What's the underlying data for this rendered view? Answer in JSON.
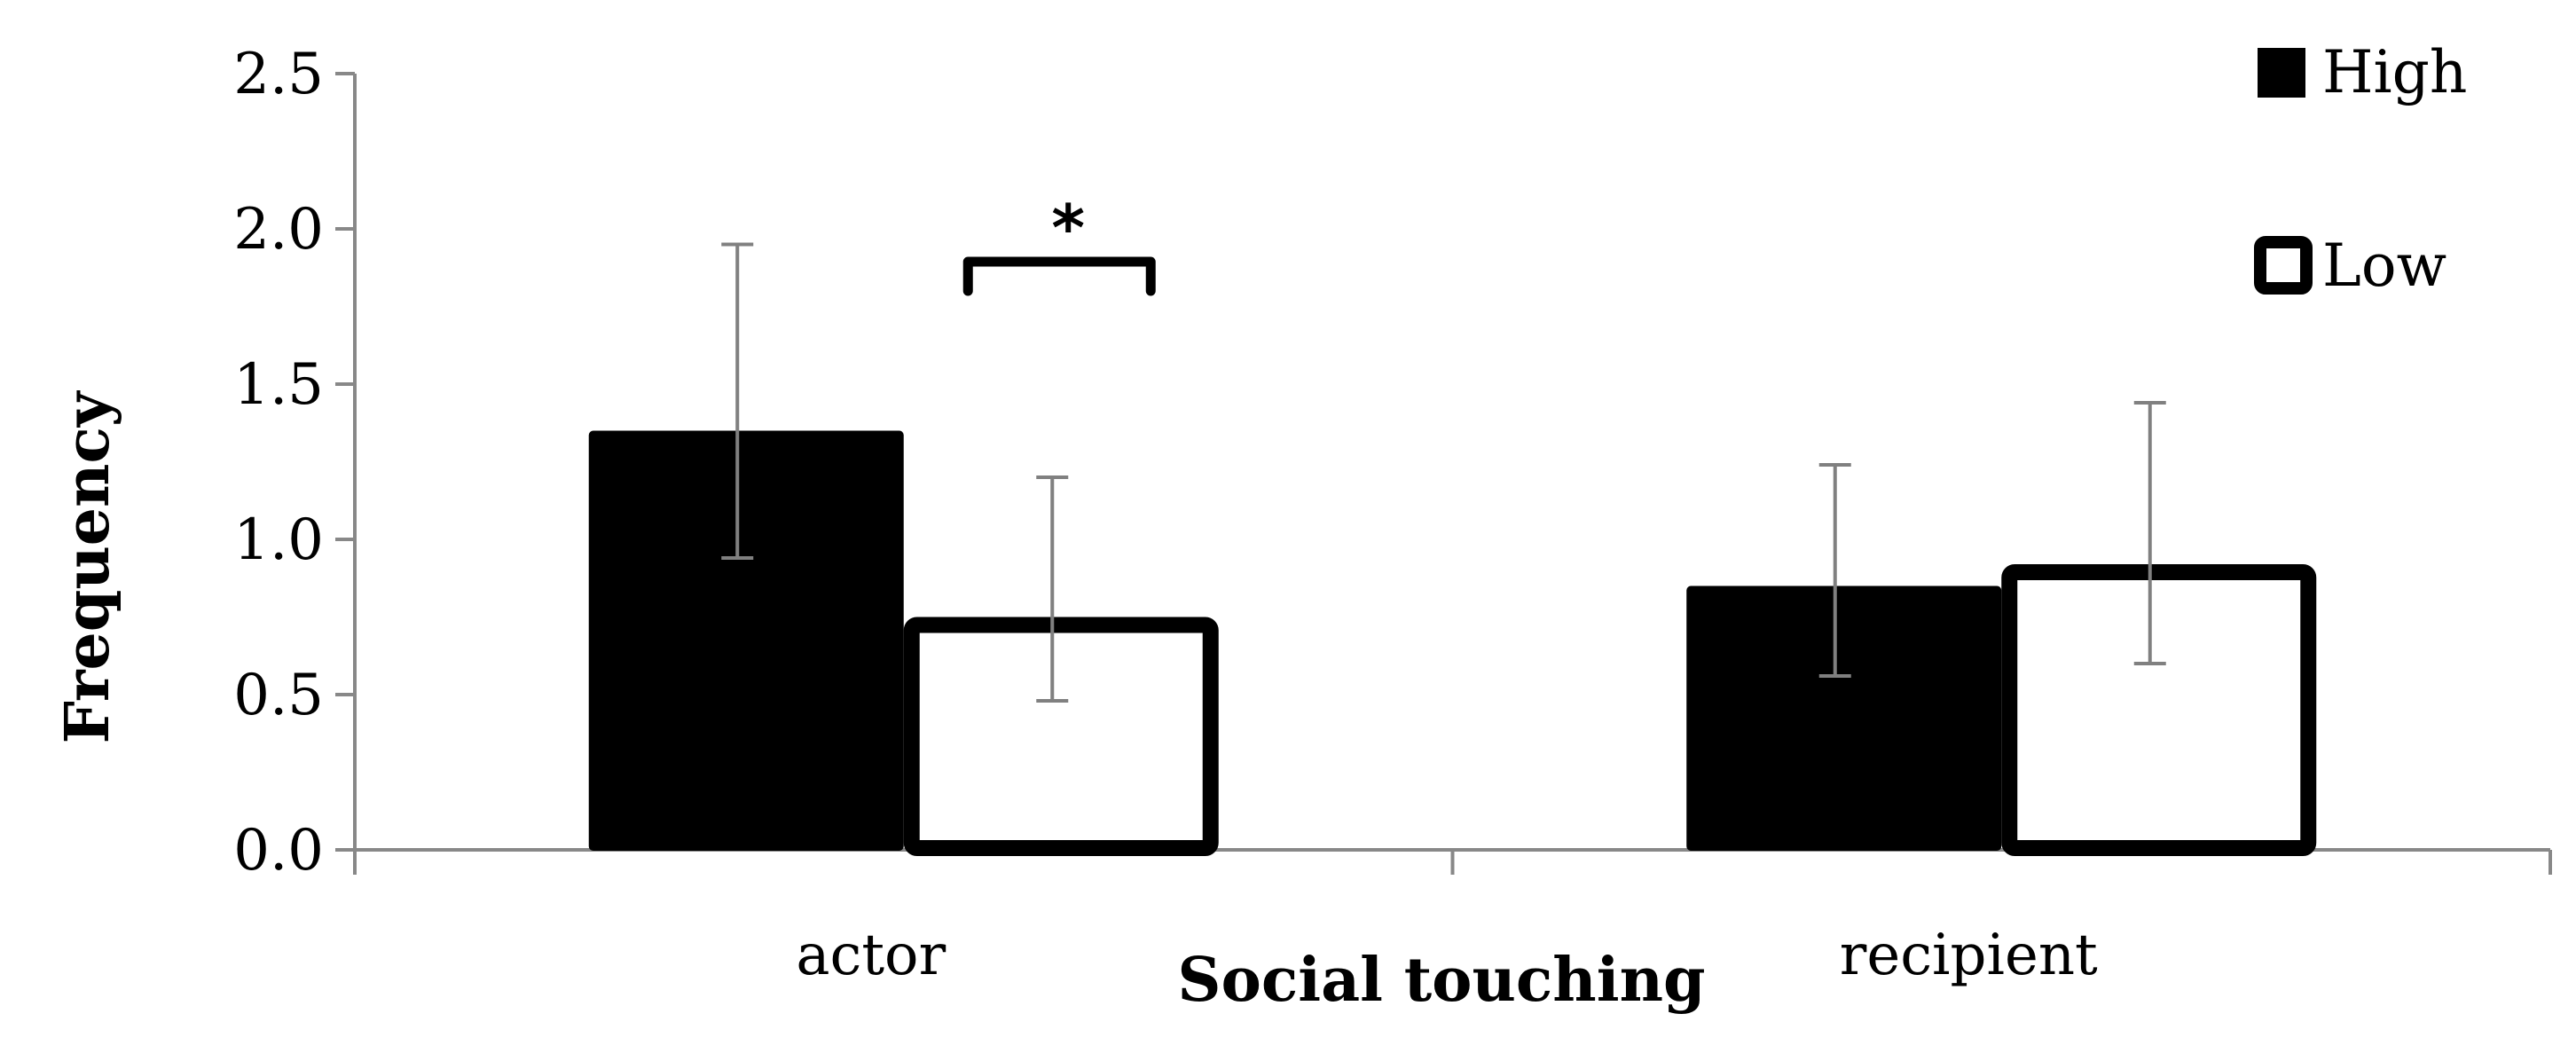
{
  "chart_data": {
    "type": "bar",
    "categories": [
      "actor",
      "recipient"
    ],
    "series": [
      {
        "name": "High",
        "values": [
          1.35,
          0.85
        ],
        "error_low": [
          0.94,
          0.56
        ],
        "error_high": [
          1.95,
          1.24
        ],
        "fill": "#000000",
        "stroke": "#000000"
      },
      {
        "name": "Low",
        "values": [
          0.75,
          0.92
        ],
        "error_low": [
          0.48,
          0.6
        ],
        "error_high": [
          1.2,
          1.44
        ],
        "fill": "#ffffff",
        "stroke": "#000000"
      }
    ],
    "xlabel": "Social touching",
    "ylabel": "Frequency",
    "ylim": [
      0,
      2.5
    ],
    "yticks": [
      "0.0",
      "0.5",
      "1.0",
      "1.5",
      "2.0",
      "2.5"
    ],
    "grid": false,
    "legend": "top-right",
    "annotations": [
      {
        "text": "*",
        "category": "actor",
        "between": [
          "High",
          "Low"
        ]
      }
    ],
    "colors": {
      "axis": "#888888",
      "error_bar": "#808080"
    }
  }
}
